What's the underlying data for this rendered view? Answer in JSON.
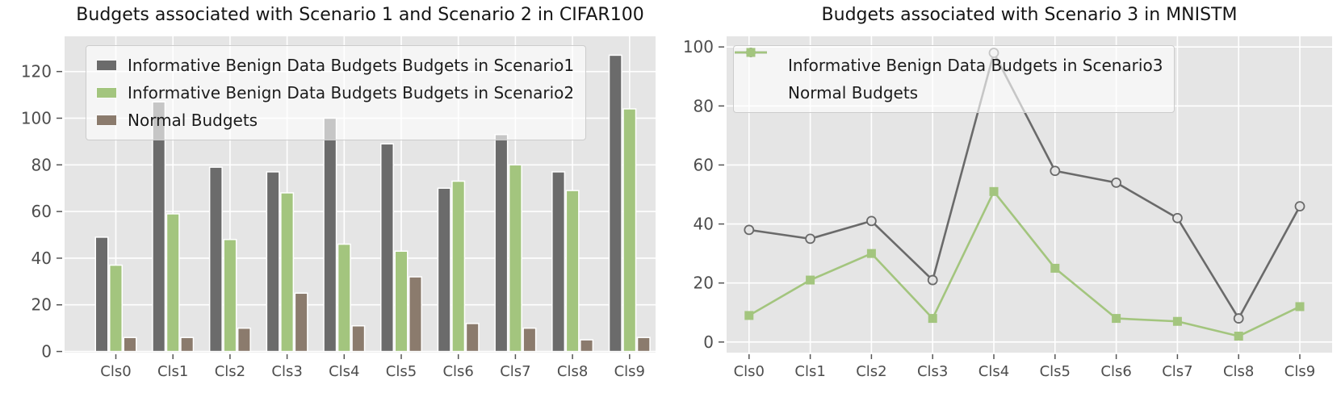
{
  "style": {
    "figure_bg": "#ffffff",
    "axes_bg": "#e5e5e5",
    "grid_color": "#ffffff",
    "tick_color": "#555555",
    "label_color": "#4d4d4d",
    "title_color": "#151515",
    "bar_edge": "#ffffff"
  },
  "chart_data": [
    {
      "type": "bar",
      "title": "Budgets associated with Scenario 1 and Scenario 2 in CIFAR100",
      "xlabel": "",
      "ylabel": "",
      "grid": true,
      "legend_position": "upper left",
      "categories": [
        "Cls0",
        "Cls1",
        "Cls2",
        "Cls3",
        "Cls4",
        "Cls5",
        "Cls6",
        "Cls7",
        "Cls8",
        "Cls9"
      ],
      "yticks": [
        0,
        20,
        40,
        60,
        80,
        100,
        120
      ],
      "ylim": [
        -0.5,
        135.1
      ],
      "series": [
        {
          "name": "Informative Benign Data Budgets Budgets in Scenario1",
          "color": "#6b6b6b",
          "values": [
            49,
            107,
            79,
            77,
            100,
            89,
            70,
            93,
            77,
            127
          ]
        },
        {
          "name": "Informative Benign Data Budgets Budgets in Scenario2",
          "color": "#a3c57e",
          "values": [
            37,
            59,
            48,
            68,
            46,
            43,
            73,
            80,
            69,
            104
          ]
        },
        {
          "name": "Normal Budgets",
          "color": "#8b7b6d",
          "values": [
            6,
            6,
            10,
            25,
            11,
            32,
            12,
            10,
            5,
            6
          ]
        }
      ]
    },
    {
      "type": "line",
      "title": "Budgets associated with Scenario 3 in MNISTM",
      "xlabel": "",
      "ylabel": "",
      "grid": true,
      "legend_position": "upper left",
      "categories": [
        "Cls0",
        "Cls1",
        "Cls2",
        "Cls3",
        "Cls4",
        "Cls5",
        "Cls6",
        "Cls7",
        "Cls8",
        "Cls9"
      ],
      "yticks": [
        0,
        20,
        40,
        60,
        80,
        100
      ],
      "ylim": [
        -3.6,
        103.6
      ],
      "series": [
        {
          "name": "Informative Benign Data Budgets in Scenario3",
          "color": "#6a6a6a",
          "marker": "circle-open",
          "values": [
            38,
            35,
            41,
            21,
            98,
            58,
            54,
            42,
            8,
            46
          ]
        },
        {
          "name": "Normal Budgets",
          "color": "#a3c57e",
          "marker": "square",
          "values": [
            9,
            21,
            30,
            8,
            51,
            25,
            8,
            7,
            2,
            12
          ]
        }
      ]
    }
  ]
}
